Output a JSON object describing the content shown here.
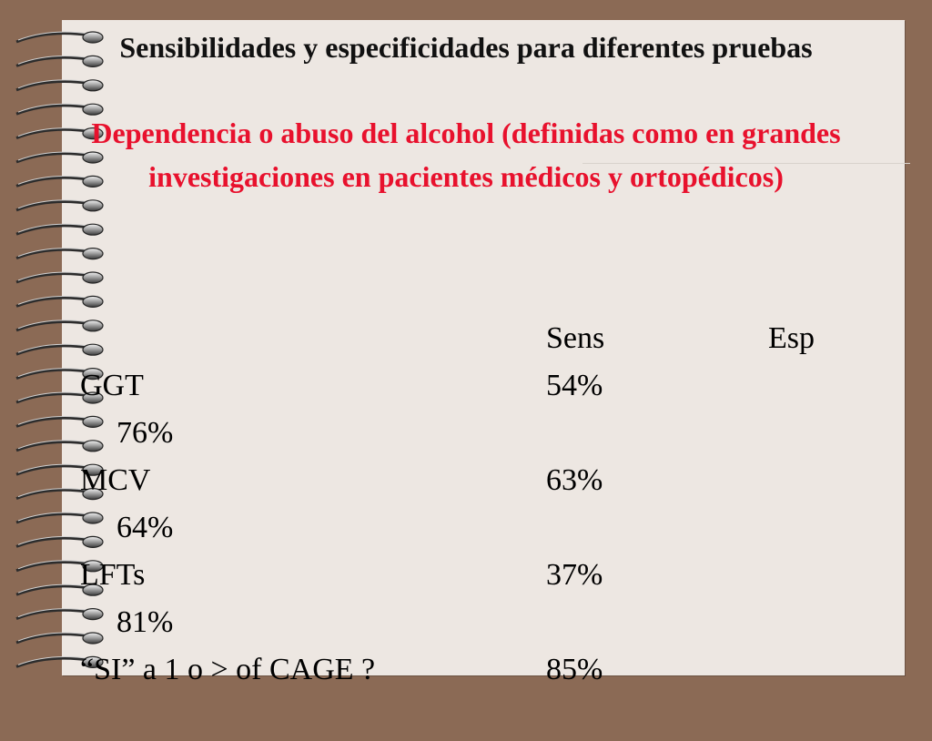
{
  "slide": {
    "title": "Sensibilidades y especificidades para diferentes pruebas",
    "subtitle": "Dependencia o abuso del alcohol (definidas como en grandes investigaciones en pacientes médicos y ortopédicos)"
  },
  "table": {
    "headers": {
      "sens": "Sens",
      "esp": "Esp"
    },
    "rows": [
      {
        "test": "GGT",
        "sens": "54%",
        "esp": "76%"
      },
      {
        "test": "MCV",
        "sens": "63%",
        "esp": "64%"
      },
      {
        "test": "LFTs",
        "sens": "37%",
        "esp": "81%"
      },
      {
        "test": "“SI” a 1 o > of CAGE ?",
        "sens": "85%",
        "esp": ""
      }
    ]
  },
  "colors": {
    "background": "#8b6a55",
    "paper": "#ede7e2",
    "title": "#111111",
    "subtitle": "#e8112d"
  }
}
